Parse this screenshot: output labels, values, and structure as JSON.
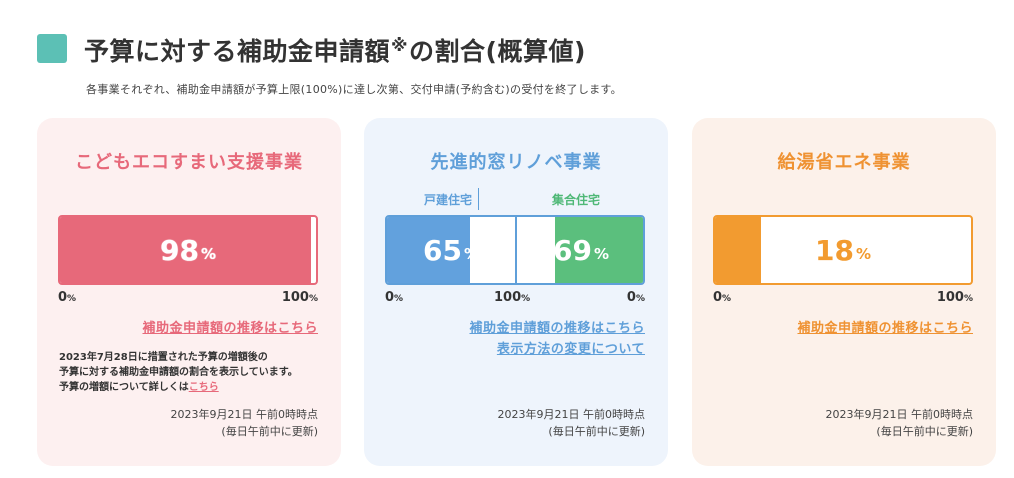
{
  "header": {
    "title_main": "予算に対する補助金申請額",
    "title_mark": "※",
    "title_tail": "の割合(概算値)",
    "subtitle": "各事業それぞれ、補助金申請額が予算上限(100%)に達し次第、交付申請(予約含む)の受付を終了します。"
  },
  "colors": {
    "accent_teal": "#5cc0b5",
    "kodomo": "#e7697a",
    "window_blue": "#62a1dd",
    "window_green": "#5bbf7d",
    "kyuto": "#f29b30"
  },
  "cards": {
    "kodomo": {
      "title": "こどもエコすまい支援事業",
      "percent": 98,
      "percent_text": "98",
      "unit": "%",
      "axis_min": "0",
      "axis_max": "100",
      "link": "補助金申請額の推移はこちら",
      "note_line1": "2023年7月28日に措置された予算の増額後の",
      "note_line2": "予算に対する補助金申請額の割合を表示しています。",
      "note_line3": "予算の増額について詳しくは",
      "note_link": "こちら",
      "updated_line1": "2023年9月21日 午前0時時点",
      "updated_line2": "(毎日午前中に更新)"
    },
    "window": {
      "title": "先進的窓リノベ事業",
      "house_label": "戸建住宅",
      "apartment_label": "集合住宅",
      "house_percent": 65,
      "house_percent_text": "65",
      "apartment_percent": 69,
      "apartment_percent_text": "69",
      "unit": "%",
      "axis_left": "0",
      "axis_mid": "100",
      "axis_right": "0",
      "link1": "補助金申請額の推移はこちら",
      "link2": "表示方法の変更について",
      "updated_line1": "2023年9月21日 午前0時時点",
      "updated_line2": "(毎日午前中に更新)"
    },
    "kyuto": {
      "title": "給湯省エネ事業",
      "percent": 18,
      "percent_text": "18",
      "unit": "%",
      "axis_min": "0",
      "axis_max": "100",
      "link": "補助金申請額の推移はこちら",
      "updated_line1": "2023年9月21日 午前0時時点",
      "updated_line2": "(毎日午前中に更新)"
    }
  }
}
